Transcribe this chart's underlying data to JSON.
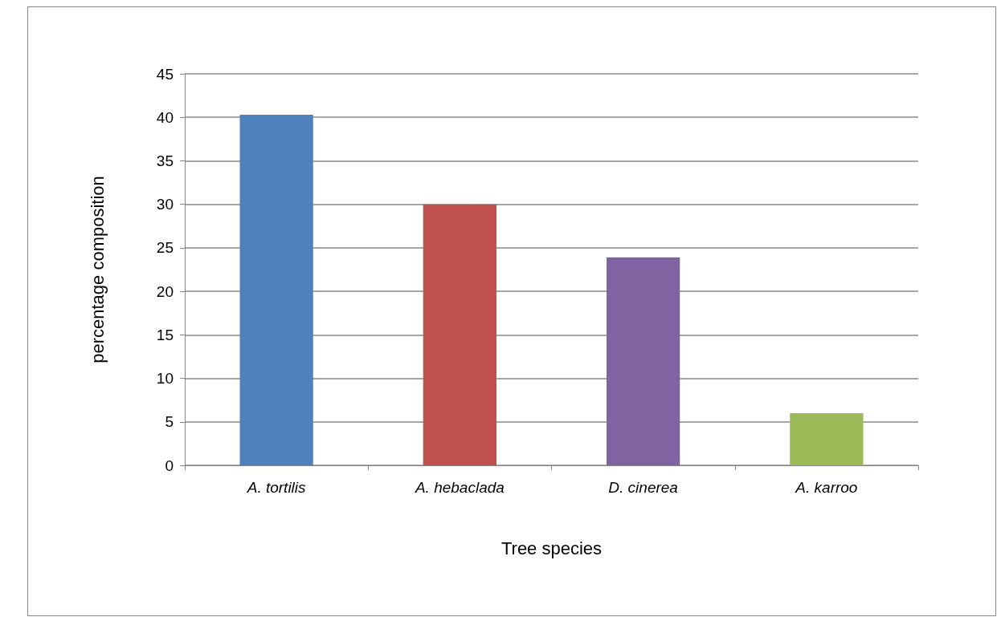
{
  "chart_data": {
    "type": "bar",
    "xlabel": "Tree species",
    "ylabel": "percentage composition",
    "categories": [
      "A. tortilis",
      "A. hebaclada",
      "D. cinerea",
      "A. karroo"
    ],
    "values": [
      40.3,
      30,
      23.9,
      6
    ],
    "colors": [
      "#4f81bd",
      "#c0504d",
      "#8064a2",
      "#9bbb59"
    ],
    "ylim": [
      0,
      45
    ],
    "yticks": [
      0,
      5,
      10,
      15,
      20,
      25,
      30,
      35,
      40,
      45
    ],
    "grid": "y"
  }
}
